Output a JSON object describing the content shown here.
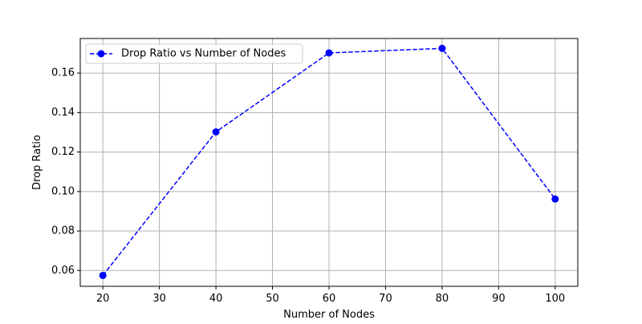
{
  "chart_data": {
    "type": "line",
    "title": "",
    "xlabel": "Number of Nodes",
    "ylabel": "Drop Ratio",
    "xlim": [
      16,
      104
    ],
    "ylim": [
      0.052,
      0.1775
    ],
    "xticks": [
      20,
      30,
      40,
      50,
      60,
      70,
      80,
      90,
      100
    ],
    "xtick_labels": [
      "20",
      "30",
      "40",
      "50",
      "60",
      "70",
      "80",
      "90",
      "100"
    ],
    "yticks": [
      0.06,
      0.08,
      0.1,
      0.12,
      0.14,
      0.16
    ],
    "ytick_labels": [
      "0.06",
      "0.08",
      "0.10",
      "0.12",
      "0.14",
      "0.16"
    ],
    "grid": true,
    "legend_position": "upper-left",
    "series": [
      {
        "name": "Drop Ratio vs Number of Nodes",
        "color": "#0000ff",
        "line_style": "dashed",
        "marker": "circle",
        "x": [
          20,
          40,
          60,
          80,
          100
        ],
        "y": [
          0.0575,
          0.1302,
          0.1702,
          0.1725,
          0.0962
        ]
      }
    ]
  }
}
